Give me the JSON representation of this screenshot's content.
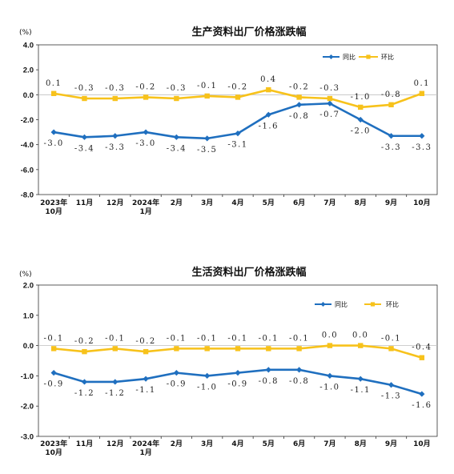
{
  "colors": {
    "yoy": "#1F6FBF",
    "mom": "#F7C21B",
    "axis": "#333333",
    "zero": "#bfbfbf"
  },
  "chart_data": [
    {
      "type": "line",
      "title": "生产资料出厂价格涨跌幅",
      "unit": "(%)",
      "ylim": [
        -8.0,
        4.0
      ],
      "yticks": [
        "4.0",
        "2.0",
        "0.0",
        "-2.0",
        "-4.0",
        "-6.0",
        "-8.0"
      ],
      "ytick_values": [
        4,
        2,
        0,
        -2,
        -4,
        -6,
        -8
      ],
      "categories": [
        [
          "2023年",
          "10月"
        ],
        [
          "11月"
        ],
        [
          "12月"
        ],
        [
          "2024年",
          "1月"
        ],
        [
          "2月"
        ],
        [
          "3月"
        ],
        [
          "4月"
        ],
        [
          "5月"
        ],
        [
          "6月"
        ],
        [
          "7月"
        ],
        [
          "8月"
        ],
        [
          "9月"
        ],
        [
          "10月"
        ]
      ],
      "legend_position": "top-right",
      "series": [
        {
          "name": "同比",
          "key": "yoy",
          "values": [
            -3.0,
            -3.4,
            -3.3,
            -3.0,
            -3.4,
            -3.5,
            -3.1,
            -1.6,
            -0.8,
            -0.7,
            -2.0,
            -3.3,
            -3.3
          ],
          "labels": [
            "-3.0",
            "-3.4",
            "-3.3",
            "-3.0",
            "-3.4",
            "-3.5",
            "-3.1",
            "-1.6",
            "-0.8",
            "-0.7",
            "-2.0",
            "-3.3",
            "-3.3"
          ]
        },
        {
          "name": "环比",
          "key": "mom",
          "values": [
            0.1,
            -0.3,
            -0.3,
            -0.2,
            -0.3,
            -0.1,
            -0.2,
            0.4,
            -0.2,
            -0.3,
            -1.0,
            -0.8,
            0.1
          ],
          "labels": [
            "0.1",
            "-0.3",
            "-0.3",
            "-0.2",
            "-0.3",
            "-0.1",
            "-0.2",
            "0.4",
            "-0.2",
            "-0.3",
            "-1.0",
            "-0.8",
            "0.1"
          ]
        }
      ]
    },
    {
      "type": "line",
      "title": "生活资料出厂价格涨跌幅",
      "unit": "(%)",
      "ylim": [
        -3.0,
        2.0
      ],
      "yticks": [
        "2.0",
        "1.0",
        "0.0",
        "-1.0",
        "-2.0",
        "-3.0"
      ],
      "ytick_values": [
        2,
        1,
        0,
        -1,
        -2,
        -3
      ],
      "categories": [
        [
          "2023年",
          "10月"
        ],
        [
          "11月"
        ],
        [
          "12月"
        ],
        [
          "2024年",
          "1月"
        ],
        [
          "2月"
        ],
        [
          "3月"
        ],
        [
          "4月"
        ],
        [
          "5月"
        ],
        [
          "6月"
        ],
        [
          "7月"
        ],
        [
          "8月"
        ],
        [
          "9月"
        ],
        [
          "10月"
        ]
      ],
      "legend_position": "top-right",
      "series": [
        {
          "name": "同比",
          "key": "yoy",
          "values": [
            -0.9,
            -1.2,
            -1.2,
            -1.1,
            -0.9,
            -1.0,
            -0.9,
            -0.8,
            -0.8,
            -1.0,
            -1.1,
            -1.3,
            -1.6
          ],
          "labels": [
            "-0.9",
            "-1.2",
            "-1.2",
            "-1.1",
            "-0.9",
            "-1.0",
            "-0.9",
            "-0.8",
            "-0.8",
            "-1.0",
            "-1.1",
            "-1.3",
            "-1.6"
          ]
        },
        {
          "name": "环比",
          "key": "mom",
          "values": [
            -0.1,
            -0.2,
            -0.1,
            -0.2,
            -0.1,
            -0.1,
            -0.1,
            -0.1,
            -0.1,
            0.0,
            0.0,
            -0.1,
            -0.4
          ],
          "labels": [
            "-0.1",
            "-0.2",
            "-0.1",
            "-0.2",
            "-0.1",
            "-0.1",
            "-0.1",
            "-0.1",
            "-0.1",
            "0.0",
            "0.0",
            "-0.1",
            "-0.4"
          ]
        }
      ]
    }
  ]
}
